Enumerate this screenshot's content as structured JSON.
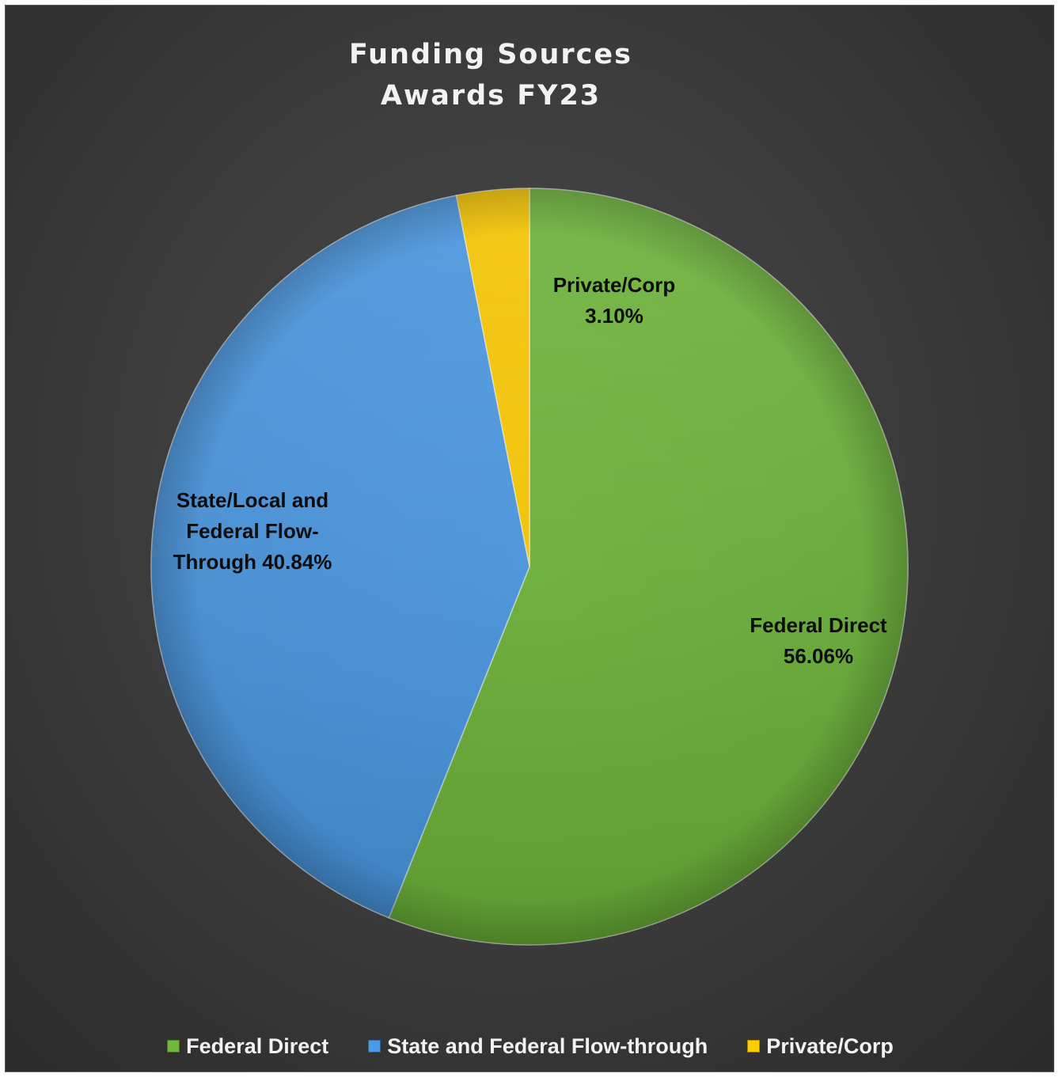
{
  "chart_data": {
    "type": "pie",
    "title": [
      "Funding Sources",
      "Awards FY23"
    ],
    "slices": [
      {
        "legend": "Federal Direct",
        "label": [
          "Federal Direct",
          "56.06%"
        ],
        "value": 56.06,
        "color": "#6fb83a"
      },
      {
        "legend": "State and Federal Flow-through",
        "label": [
          "State/Local and",
          "Federal Flow-",
          "Through 40.84%"
        ],
        "value": 40.84,
        "color": "#4a9ae6"
      },
      {
        "legend": "Private/Corp",
        "label": [
          "Private/Corp",
          "3.10%"
        ],
        "value": 3.1,
        "color": "#ffcc00"
      }
    ],
    "start": "12 o'clock, clockwise",
    "legend_position": "bottom",
    "data_labels": "inside, bold black"
  }
}
